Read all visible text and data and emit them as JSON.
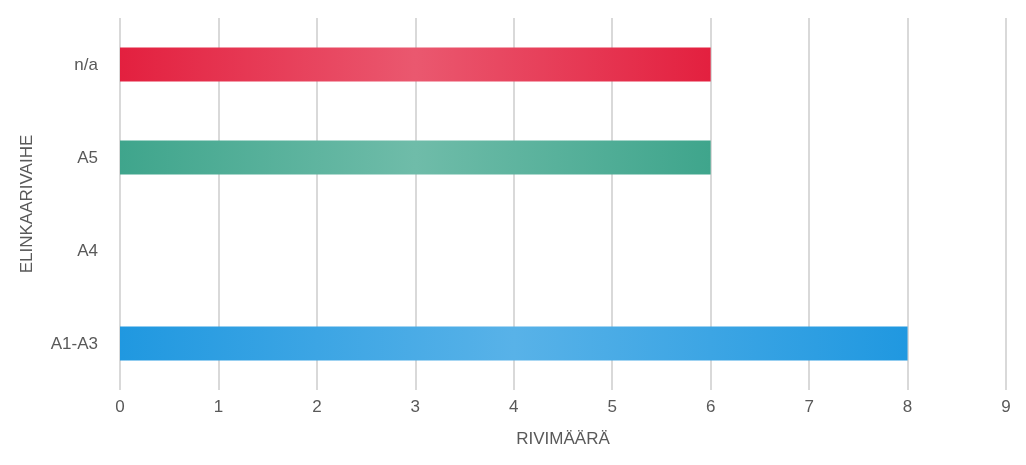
{
  "chart_data": {
    "type": "bar",
    "orientation": "horizontal",
    "xlabel": "RIVIMÄÄRÄ",
    "ylabel": "ELINKAARIVAIHE",
    "categories": [
      "n/a",
      "A5",
      "A4",
      "A1-A3"
    ],
    "values": [
      6,
      6,
      null,
      8
    ],
    "colors": [
      "#e3203f",
      "#3fa58c",
      "#000000",
      "#2098e0"
    ],
    "xlim": [
      0,
      9
    ],
    "xticks": [
      0,
      1,
      2,
      3,
      4,
      5,
      6,
      7,
      8,
      9
    ],
    "grid": "x"
  }
}
